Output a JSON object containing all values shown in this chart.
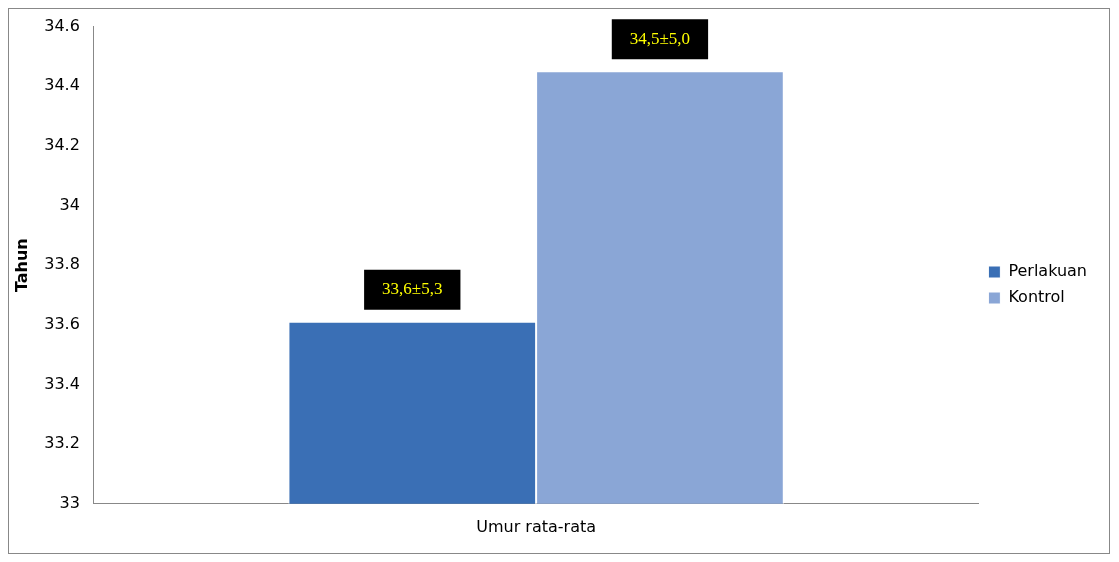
{
  "chart_data": {
    "type": "bar",
    "ylabel": "Tahun",
    "categories": [
      "Umur rata-rata"
    ],
    "series": [
      {
        "name": "Perlakuan",
        "color": "#3a6fb5",
        "values": [
          33.61
        ],
        "value_labels": [
          "33,6±5,3"
        ]
      },
      {
        "name": "Kontrol",
        "color": "#8aa6d6",
        "values": [
          34.45
        ],
        "value_labels": [
          "34,5±5,0"
        ]
      }
    ],
    "ylim": [
      33,
      34.6
    ],
    "yticks": [
      33,
      33.2,
      33.4,
      33.6,
      33.8,
      34,
      34.2,
      34.4,
      34.6
    ],
    "grid": false,
    "legend": "right"
  }
}
